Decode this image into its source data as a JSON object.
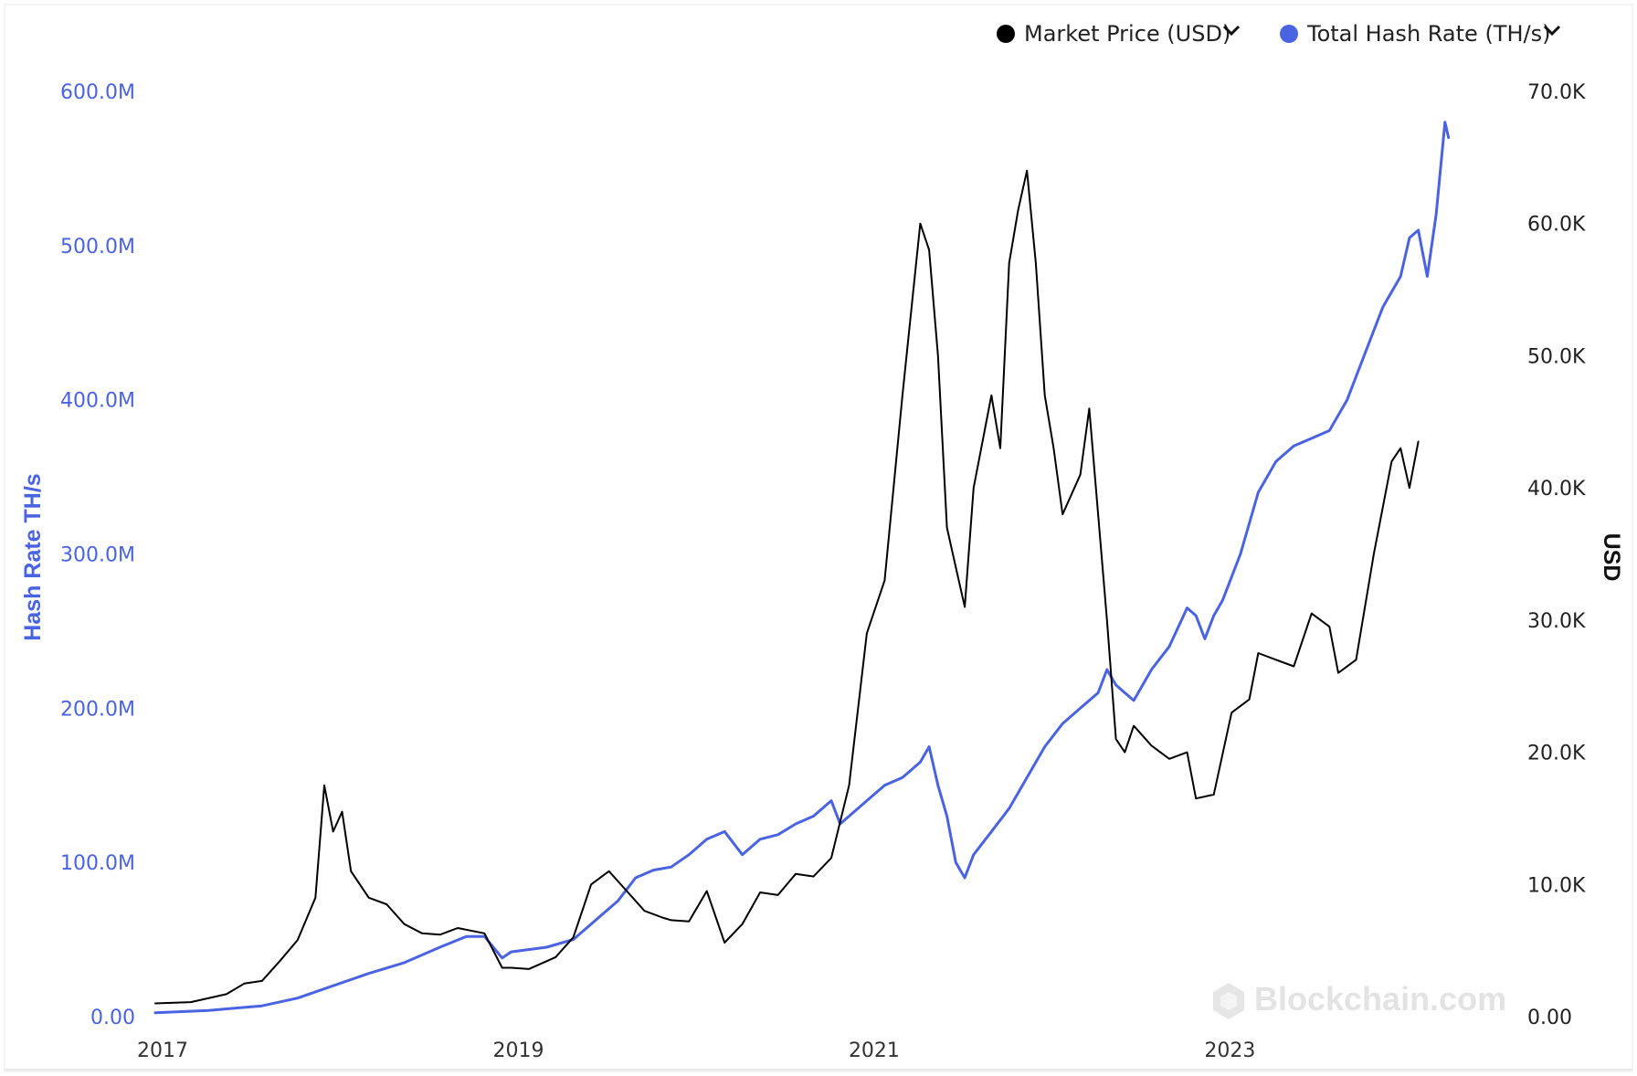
{
  "legend": [
    {
      "label": "Market Price (USD)",
      "color": "#000000",
      "chevron": "chevron-down-icon"
    },
    {
      "label": "Total Hash Rate (TH/s)",
      "color": "#4a63e0",
      "chevron": "chevron-down-icon"
    }
  ],
  "watermark": {
    "text": "Blockchain.com",
    "icon": "blockchain-logo-icon"
  },
  "chart_data": {
    "type": "line",
    "title": "",
    "xlabel": "",
    "ylabel_left": "Hash Rate TH/s",
    "ylabel_right": "USD",
    "x_ticks": [
      "2017",
      "2019",
      "2021",
      "2023"
    ],
    "x_tick_values": [
      2017,
      2019,
      2021,
      2023
    ],
    "xlim": [
      2017,
      2024.6
    ],
    "y_left_ticks": [
      "0.00",
      "100.0M",
      "200.0M",
      "300.0M",
      "400.0M",
      "500.0M",
      "600.0M"
    ],
    "ylim_left": [
      0,
      600000000
    ],
    "y_right_ticks": [
      "0.00",
      "10.0K",
      "20.0K",
      "30.0K",
      "40.0K",
      "50.0K",
      "60.0K",
      "70.0K"
    ],
    "ylim_right": [
      0,
      70000
    ],
    "grid": false,
    "legend_position": "top-right",
    "series": [
      {
        "name": "Market Price (USD)",
        "axis": "right",
        "color": "#000000",
        "points": [
          [
            2017.0,
            1000
          ],
          [
            2017.2,
            1100
          ],
          [
            2017.4,
            1700
          ],
          [
            2017.5,
            2500
          ],
          [
            2017.6,
            2700
          ],
          [
            2017.7,
            4200
          ],
          [
            2017.8,
            5800
          ],
          [
            2017.9,
            9000
          ],
          [
            2017.95,
            17500
          ],
          [
            2018.0,
            14000
          ],
          [
            2018.05,
            15500
          ],
          [
            2018.1,
            11000
          ],
          [
            2018.2,
            9000
          ],
          [
            2018.3,
            8500
          ],
          [
            2018.4,
            7000
          ],
          [
            2018.5,
            6300
          ],
          [
            2018.6,
            6200
          ],
          [
            2018.7,
            6700
          ],
          [
            2018.85,
            6300
          ],
          [
            2018.95,
            3700
          ],
          [
            2019.0,
            3700
          ],
          [
            2019.1,
            3600
          ],
          [
            2019.25,
            4500
          ],
          [
            2019.35,
            6000
          ],
          [
            2019.45,
            10000
          ],
          [
            2019.55,
            11000
          ],
          [
            2019.65,
            9500
          ],
          [
            2019.75,
            8000
          ],
          [
            2019.85,
            7500
          ],
          [
            2019.9,
            7300
          ],
          [
            2020.0,
            7200
          ],
          [
            2020.1,
            9500
          ],
          [
            2020.2,
            5600
          ],
          [
            2020.3,
            7000
          ],
          [
            2020.4,
            9400
          ],
          [
            2020.5,
            9200
          ],
          [
            2020.6,
            10800
          ],
          [
            2020.7,
            10600
          ],
          [
            2020.8,
            12000
          ],
          [
            2020.9,
            17500
          ],
          [
            2021.0,
            29000
          ],
          [
            2021.1,
            33000
          ],
          [
            2021.2,
            47000
          ],
          [
            2021.3,
            60000
          ],
          [
            2021.35,
            58000
          ],
          [
            2021.4,
            50000
          ],
          [
            2021.45,
            37000
          ],
          [
            2021.5,
            34000
          ],
          [
            2021.55,
            31000
          ],
          [
            2021.6,
            40000
          ],
          [
            2021.7,
            47000
          ],
          [
            2021.75,
            43000
          ],
          [
            2021.8,
            57000
          ],
          [
            2021.85,
            61000
          ],
          [
            2021.9,
            64000
          ],
          [
            2021.95,
            57000
          ],
          [
            2022.0,
            47000
          ],
          [
            2022.05,
            43000
          ],
          [
            2022.1,
            38000
          ],
          [
            2022.2,
            41000
          ],
          [
            2022.25,
            46000
          ],
          [
            2022.3,
            38000
          ],
          [
            2022.35,
            30000
          ],
          [
            2022.4,
            21000
          ],
          [
            2022.45,
            20000
          ],
          [
            2022.5,
            22000
          ],
          [
            2022.6,
            20500
          ],
          [
            2022.7,
            19500
          ],
          [
            2022.8,
            20000
          ],
          [
            2022.85,
            16500
          ],
          [
            2022.95,
            16800
          ],
          [
            2023.05,
            23000
          ],
          [
            2023.15,
            24000
          ],
          [
            2023.2,
            27500
          ],
          [
            2023.3,
            27000
          ],
          [
            2023.4,
            26500
          ],
          [
            2023.5,
            30500
          ],
          [
            2023.6,
            29500
          ],
          [
            2023.65,
            26000
          ],
          [
            2023.75,
            27000
          ],
          [
            2023.85,
            35000
          ],
          [
            2023.95,
            42000
          ],
          [
            2024.0,
            43000
          ],
          [
            2024.05,
            40000
          ],
          [
            2024.1,
            43500
          ]
        ]
      },
      {
        "name": "Total Hash Rate (TH/s)",
        "axis": "left",
        "color": "#4a63e0",
        "points": [
          [
            2017.0,
            2500000
          ],
          [
            2017.3,
            4000000
          ],
          [
            2017.6,
            7000000
          ],
          [
            2017.8,
            12000000
          ],
          [
            2018.0,
            20000000
          ],
          [
            2018.2,
            28000000
          ],
          [
            2018.4,
            35000000
          ],
          [
            2018.6,
            45000000
          ],
          [
            2018.75,
            52000000
          ],
          [
            2018.85,
            52000000
          ],
          [
            2018.95,
            38000000
          ],
          [
            2019.0,
            42000000
          ],
          [
            2019.2,
            45000000
          ],
          [
            2019.35,
            50000000
          ],
          [
            2019.5,
            65000000
          ],
          [
            2019.6,
            75000000
          ],
          [
            2019.7,
            90000000
          ],
          [
            2019.8,
            95000000
          ],
          [
            2019.9,
            97000000
          ],
          [
            2020.0,
            105000000
          ],
          [
            2020.1,
            115000000
          ],
          [
            2020.2,
            120000000
          ],
          [
            2020.3,
            105000000
          ],
          [
            2020.4,
            115000000
          ],
          [
            2020.5,
            118000000
          ],
          [
            2020.6,
            125000000
          ],
          [
            2020.7,
            130000000
          ],
          [
            2020.8,
            140000000
          ],
          [
            2020.85,
            125000000
          ],
          [
            2020.9,
            130000000
          ],
          [
            2021.0,
            140000000
          ],
          [
            2021.1,
            150000000
          ],
          [
            2021.2,
            155000000
          ],
          [
            2021.3,
            165000000
          ],
          [
            2021.35,
            175000000
          ],
          [
            2021.4,
            150000000
          ],
          [
            2021.45,
            130000000
          ],
          [
            2021.5,
            100000000
          ],
          [
            2021.55,
            90000000
          ],
          [
            2021.6,
            105000000
          ],
          [
            2021.7,
            120000000
          ],
          [
            2021.8,
            135000000
          ],
          [
            2021.9,
            155000000
          ],
          [
            2022.0,
            175000000
          ],
          [
            2022.1,
            190000000
          ],
          [
            2022.2,
            200000000
          ],
          [
            2022.3,
            210000000
          ],
          [
            2022.35,
            225000000
          ],
          [
            2022.4,
            215000000
          ],
          [
            2022.5,
            205000000
          ],
          [
            2022.6,
            225000000
          ],
          [
            2022.7,
            240000000
          ],
          [
            2022.8,
            265000000
          ],
          [
            2022.85,
            260000000
          ],
          [
            2022.9,
            245000000
          ],
          [
            2022.95,
            260000000
          ],
          [
            2023.0,
            270000000
          ],
          [
            2023.1,
            300000000
          ],
          [
            2023.2,
            340000000
          ],
          [
            2023.3,
            360000000
          ],
          [
            2023.4,
            370000000
          ],
          [
            2023.5,
            375000000
          ],
          [
            2023.6,
            380000000
          ],
          [
            2023.7,
            400000000
          ],
          [
            2023.8,
            430000000
          ],
          [
            2023.9,
            460000000
          ],
          [
            2024.0,
            480000000
          ],
          [
            2024.05,
            505000000
          ],
          [
            2024.1,
            510000000
          ],
          [
            2024.15,
            480000000
          ],
          [
            2024.2,
            520000000
          ],
          [
            2024.25,
            580000000
          ],
          [
            2024.27,
            570000000
          ]
        ]
      }
    ]
  }
}
